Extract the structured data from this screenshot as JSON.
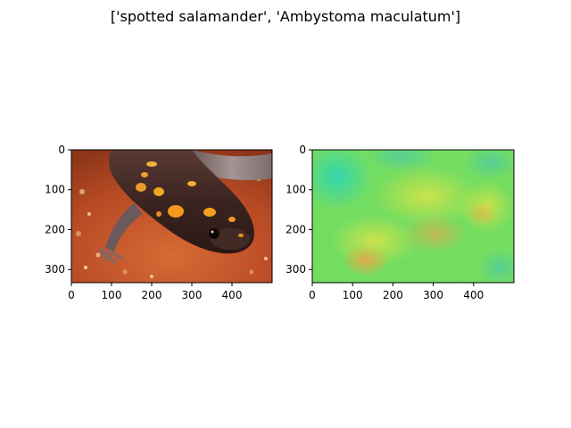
{
  "figure": {
    "title": "['spotted salamander', 'Ambystoma maculatum']"
  },
  "chart_data": [
    {
      "type": "image",
      "title": "",
      "xlabel": "",
      "ylabel": "",
      "xlim": [
        0,
        500
      ],
      "ylim": [
        333,
        0
      ],
      "xticks": [
        0,
        100,
        200,
        300,
        400
      ],
      "yticks": [
        0,
        100,
        200,
        300
      ],
      "image_content": "photo of a spotted salamander: dark brown body with orange spots on reddish soil",
      "colors": {
        "background": "#c2542a",
        "body": "#3a2420",
        "spot": "#f0a020",
        "highlight": "#8a7a78"
      }
    },
    {
      "type": "heatmap",
      "title": "",
      "xlabel": "",
      "ylabel": "",
      "xlim": [
        0,
        500
      ],
      "ylim": [
        333,
        0
      ],
      "xticks": [
        0,
        100,
        200,
        300,
        400
      ],
      "yticks": [
        0,
        100,
        200,
        300
      ],
      "image_content": "saliency map in jet-like colormap, mostly green with yellow and orange regions",
      "colors": {
        "base": "#6ee05a",
        "cool": "#2ee0a0",
        "warm": "#d8e84a",
        "hot": "#f0a040"
      }
    }
  ]
}
